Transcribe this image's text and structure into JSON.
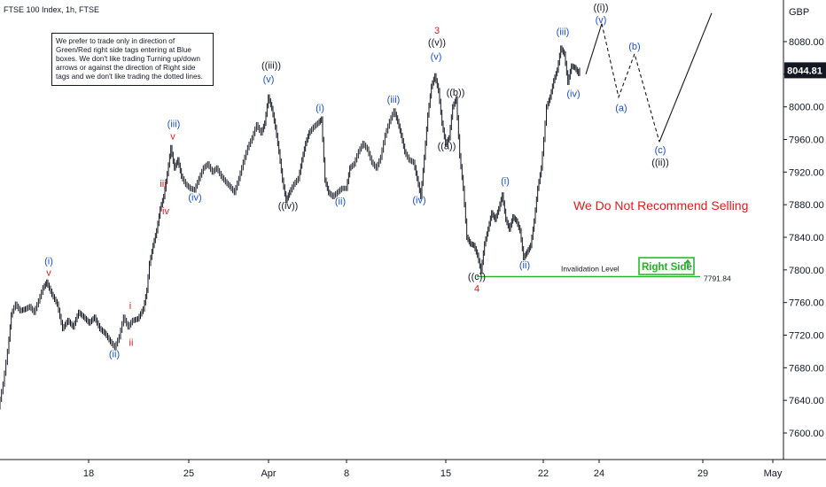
{
  "header": {
    "symbol": "FTSE 100 Index, 1h, FTSE",
    "currency": "GBP"
  },
  "note": {
    "text": "We prefer to trade only in direction of Green/Red right side tags entering at Blue boxes. We don't like trading Turning up/down arrows or against the direction of Right side tags and we don't like trading the dotted lines."
  },
  "price_badge": {
    "value": "8044.81",
    "color": "#131722"
  },
  "annotations": {
    "recommend": "We Do Not Recommend Selling",
    "invalidation_label": "Invalidation Level",
    "invalidation_value": "7791.84",
    "right_side": "Right Side"
  },
  "colors": {
    "blue": "#1b4fd6",
    "red": "#e01b1b",
    "green": "#1fb31f",
    "black": "#131722"
  },
  "chart_data": {
    "type": "line",
    "title": "FTSE 100 Index, 1h, FTSE",
    "xlabel": "",
    "ylabel": "",
    "ylim": [
      7555,
      8125
    ],
    "yticks": [
      7600,
      7640,
      7680,
      7720,
      7760,
      7800,
      7840,
      7880,
      7920,
      7960,
      8000,
      8040,
      8080
    ],
    "xticks": [
      {
        "label": "18",
        "pos": 100
      },
      {
        "label": "25",
        "pos": 213
      },
      {
        "label": "Apr",
        "pos": 303
      },
      {
        "label": "8",
        "pos": 391
      },
      {
        "label": "15",
        "pos": 503
      },
      {
        "label": "22",
        "pos": 613
      },
      {
        "label": "24",
        "pos": 676
      },
      {
        "label": "29",
        "pos": 793
      },
      {
        "label": "May",
        "pos": 872
      }
    ],
    "xrange": [
      0,
      885
    ],
    "price_path": [
      [
        0,
        7632
      ],
      [
        5,
        7660
      ],
      [
        10,
        7700
      ],
      [
        14,
        7745
      ],
      [
        19,
        7758
      ],
      [
        24,
        7750
      ],
      [
        30,
        7752
      ],
      [
        35,
        7755
      ],
      [
        40,
        7748
      ],
      [
        45,
        7762
      ],
      [
        50,
        7778
      ],
      [
        54,
        7785
      ],
      [
        60,
        7770
      ],
      [
        66,
        7758
      ],
      [
        72,
        7728
      ],
      [
        78,
        7738
      ],
      [
        84,
        7730
      ],
      [
        90,
        7748
      ],
      [
        96,
        7742
      ],
      [
        102,
        7735
      ],
      [
        108,
        7742
      ],
      [
        114,
        7728
      ],
      [
        120,
        7722
      ],
      [
        126,
        7712
      ],
      [
        131,
        7705
      ],
      [
        136,
        7718
      ],
      [
        141,
        7742
      ],
      [
        146,
        7730
      ],
      [
        151,
        7738
      ],
      [
        157,
        7740
      ],
      [
        163,
        7752
      ],
      [
        167,
        7775
      ],
      [
        170,
        7808
      ],
      [
        174,
        7830
      ],
      [
        178,
        7848
      ],
      [
        182,
        7875
      ],
      [
        186,
        7890
      ],
      [
        190,
        7918
      ],
      [
        194,
        7950
      ],
      [
        198,
        7925
      ],
      [
        202,
        7935
      ],
      [
        206,
        7915
      ],
      [
        211,
        7905
      ],
      [
        216,
        7900
      ],
      [
        221,
        7898
      ],
      [
        226,
        7912
      ],
      [
        231,
        7925
      ],
      [
        236,
        7930
      ],
      [
        241,
        7920
      ],
      [
        246,
        7925
      ],
      [
        251,
        7915
      ],
      [
        256,
        7908
      ],
      [
        261,
        7902
      ],
      [
        266,
        7895
      ],
      [
        271,
        7912
      ],
      [
        276,
        7932
      ],
      [
        281,
        7950
      ],
      [
        286,
        7962
      ],
      [
        291,
        7978
      ],
      [
        296,
        7968
      ],
      [
        300,
        7980
      ],
      [
        304,
        8012
      ],
      [
        308,
        7998
      ],
      [
        312,
        7975
      ],
      [
        316,
        7945
      ],
      [
        320,
        7910
      ],
      [
        324,
        7885
      ],
      [
        328,
        7895
      ],
      [
        333,
        7905
      ],
      [
        338,
        7912
      ],
      [
        342,
        7935
      ],
      [
        346,
        7955
      ],
      [
        350,
        7968
      ],
      [
        355,
        7975
      ],
      [
        360,
        7980
      ],
      [
        364,
        7985
      ],
      [
        368,
        7910
      ],
      [
        372,
        7895
      ],
      [
        377,
        7890
      ],
      [
        382,
        7895
      ],
      [
        387,
        7900
      ],
      [
        392,
        7900
      ],
      [
        396,
        7925
      ],
      [
        401,
        7930
      ],
      [
        406,
        7945
      ],
      [
        411,
        7955
      ],
      [
        416,
        7948
      ],
      [
        421,
        7932
      ],
      [
        426,
        7925
      ],
      [
        431,
        7938
      ],
      [
        436,
        7965
      ],
      [
        441,
        7982
      ],
      [
        446,
        7995
      ],
      [
        450,
        7982
      ],
      [
        454,
        7965
      ],
      [
        458,
        7945
      ],
      [
        463,
        7935
      ],
      [
        468,
        7932
      ],
      [
        472,
        7912
      ],
      [
        476,
        7890
      ],
      [
        480,
        7938
      ],
      [
        484,
        7990
      ],
      [
        488,
        8025
      ],
      [
        492,
        8038
      ],
      [
        496,
        8020
      ],
      [
        500,
        7980
      ],
      [
        504,
        7955
      ],
      [
        508,
        7962
      ],
      [
        512,
        8000
      ],
      [
        516,
        8010
      ],
      [
        520,
        7940
      ],
      [
        524,
        7900
      ],
      [
        528,
        7840
      ],
      [
        532,
        7832
      ],
      [
        536,
        7830
      ],
      [
        540,
        7818
      ],
      [
        544,
        7798
      ],
      [
        548,
        7832
      ],
      [
        552,
        7850
      ],
      [
        556,
        7870
      ],
      [
        560,
        7862
      ],
      [
        564,
        7875
      ],
      [
        568,
        7892
      ],
      [
        572,
        7862
      ],
      [
        576,
        7850
      ],
      [
        580,
        7865
      ],
      [
        584,
        7860
      ],
      [
        588,
        7848
      ],
      [
        592,
        7815
      ],
      [
        596,
        7822
      ],
      [
        600,
        7830
      ],
      [
        604,
        7860
      ],
      [
        608,
        7900
      ],
      [
        612,
        7925
      ],
      [
        615,
        7960
      ],
      [
        618,
        8000
      ],
      [
        622,
        8012
      ],
      [
        626,
        8032
      ],
      [
        630,
        8045
      ],
      [
        634,
        8072
      ],
      [
        638,
        8065
      ],
      [
        642,
        8030
      ],
      [
        646,
        8050
      ],
      [
        650,
        8048
      ],
      [
        654,
        8041
      ],
      [
        656,
        8044.81
      ]
    ],
    "projection": {
      "solid_1": [
        [
          661,
          8040
        ],
        [
          679,
          8102
        ]
      ],
      "dashed": [
        [
          679,
          8102
        ],
        [
          698,
          8012
        ],
        [
          716,
          8065
        ],
        [
          744,
          7957
        ]
      ],
      "solid_2": [
        [
          744,
          7957
        ],
        [
          803,
          8115
        ]
      ]
    },
    "invalidation": {
      "level": 7791.84,
      "x_start": 538,
      "x_end": 790
    },
    "wave_labels": [
      {
        "text": "(i)",
        "x": 55,
        "y": 7807,
        "color": "blue"
      },
      {
        "text": "v",
        "x": 55,
        "y": 7793,
        "color": "red"
      },
      {
        "text": "(ii)",
        "x": 129,
        "y": 7693,
        "color": "blue"
      },
      {
        "text": "i",
        "x": 147,
        "y": 7752,
        "color": "red"
      },
      {
        "text": "ii",
        "x": 148,
        "y": 7707,
        "color": "red"
      },
      {
        "text": "(iii)",
        "x": 196,
        "y": 7975,
        "color": "blue"
      },
      {
        "text": "v",
        "x": 195,
        "y": 7960,
        "color": "red"
      },
      {
        "text": "iii",
        "x": 184,
        "y": 7902,
        "color": "red"
      },
      {
        "text": "iv",
        "x": 187,
        "y": 7868,
        "color": "red"
      },
      {
        "text": "(iv)",
        "x": 220,
        "y": 7885,
        "color": "blue"
      },
      {
        "text": "((iii))",
        "x": 306,
        "y": 8047,
        "color": "black"
      },
      {
        "text": "(v)",
        "x": 303,
        "y": 8030,
        "color": "blue"
      },
      {
        "text": "((iv))",
        "x": 325,
        "y": 7875,
        "color": "black"
      },
      {
        "text": "(i)",
        "x": 361,
        "y": 7995,
        "color": "blue"
      },
      {
        "text": "(ii)",
        "x": 384,
        "y": 7880,
        "color": "blue"
      },
      {
        "text": "(iii)",
        "x": 444,
        "y": 8005,
        "color": "blue"
      },
      {
        "text": "(iv)",
        "x": 473,
        "y": 7882,
        "color": "blue"
      },
      {
        "text": "3",
        "x": 493,
        "y": 8090,
        "color": "red"
      },
      {
        "text": "((v))",
        "x": 493,
        "y": 8075,
        "color": "black"
      },
      {
        "text": "(v)",
        "x": 492,
        "y": 8058,
        "color": "blue"
      },
      {
        "text": "((b))",
        "x": 514,
        "y": 8014,
        "color": "black"
      },
      {
        "text": "((a))",
        "x": 504,
        "y": 7948,
        "color": "black"
      },
      {
        "text": "(i)",
        "x": 570,
        "y": 7905,
        "color": "blue"
      },
      {
        "text": "(ii)",
        "x": 592,
        "y": 7802,
        "color": "blue"
      },
      {
        "text": "((c))",
        "x": 538,
        "y": 7788,
        "color": "black"
      },
      {
        "text": "4",
        "x": 538,
        "y": 7773,
        "color": "red"
      },
      {
        "text": "(iii)",
        "x": 635,
        "y": 8088,
        "color": "blue"
      },
      {
        "text": "(iv)",
        "x": 647,
        "y": 8012,
        "color": "blue"
      },
      {
        "text": "((i))",
        "x": 678,
        "y": 8118,
        "color": "black"
      },
      {
        "text": "(v)",
        "x": 678,
        "y": 8103,
        "color": "blue"
      },
      {
        "text": "(a)",
        "x": 701,
        "y": 7995,
        "color": "blue"
      },
      {
        "text": "(b)",
        "x": 716,
        "y": 8070,
        "color": "blue"
      },
      {
        "text": "(c)",
        "x": 745,
        "y": 7943,
        "color": "blue"
      },
      {
        "text": "((ii))",
        "x": 745,
        "y": 7928,
        "color": "black"
      }
    ]
  }
}
